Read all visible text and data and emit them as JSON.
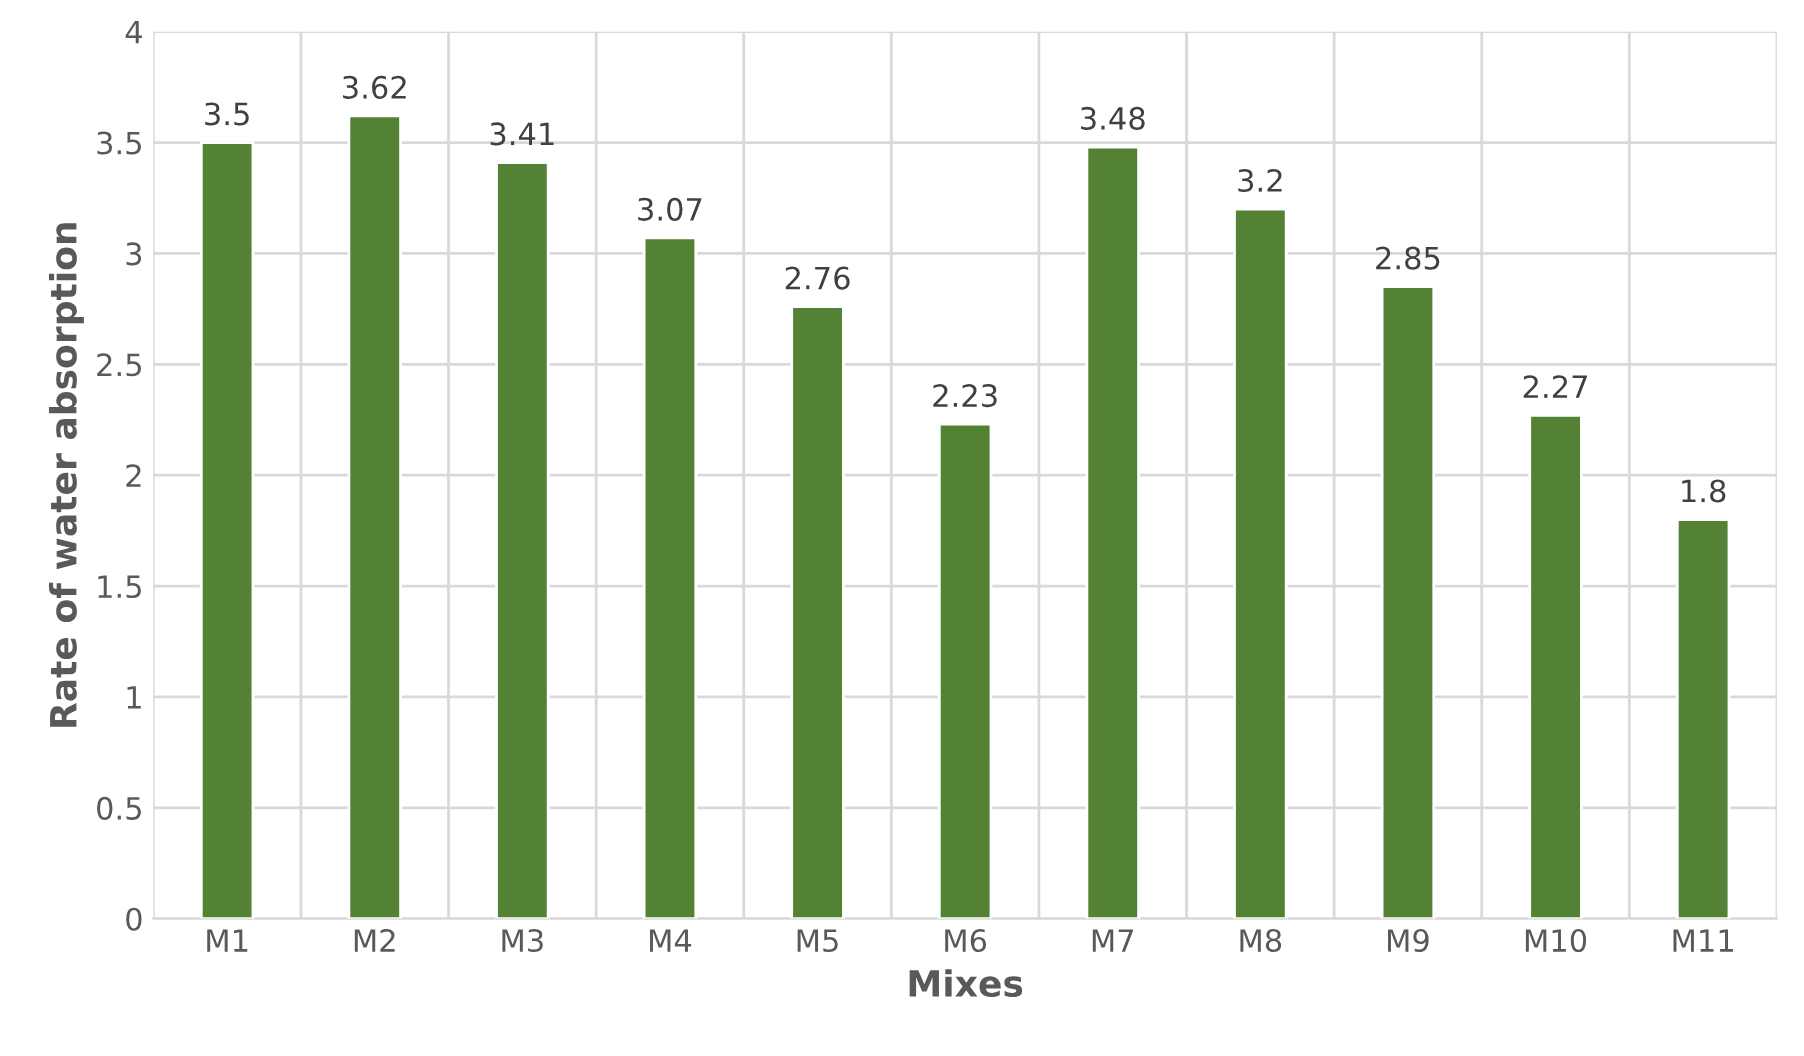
{
  "chart_data": {
    "type": "bar",
    "xlabel": "Mixes",
    "ylabel": "Rate of water absorption",
    "categories": [
      "M1",
      "M2",
      "M3",
      "M4",
      "M5",
      "M6",
      "M7",
      "M8",
      "M9",
      "M10",
      "M11"
    ],
    "values": [
      3.5,
      3.62,
      3.41,
      3.07,
      2.76,
      2.23,
      3.48,
      3.2,
      2.85,
      2.27,
      1.8
    ],
    "color": "#548235",
    "ylim": [
      0,
      4
    ],
    "yticks": [
      0,
      0.5,
      1,
      1.5,
      2,
      2.5,
      3,
      3.5,
      4
    ],
    "grid": true,
    "data_labels": true
  }
}
